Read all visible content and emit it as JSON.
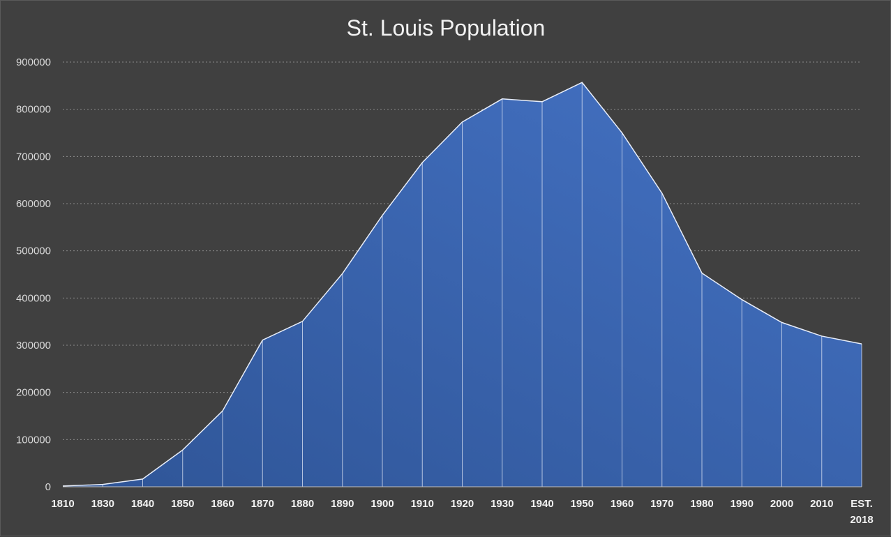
{
  "chart_data": {
    "type": "area",
    "title": "St. Louis Population",
    "xlabel": "",
    "ylabel": "",
    "categories": [
      "1810",
      "1830",
      "1840",
      "1850",
      "1860",
      "1870",
      "1880",
      "1890",
      "1900",
      "1910",
      "1920",
      "1930",
      "1940",
      "1950",
      "1960",
      "1970",
      "1980",
      "1990",
      "2000",
      "2010",
      "EST. 2018"
    ],
    "category_lines": [
      [
        "1810"
      ],
      [
        "1830"
      ],
      [
        "1840"
      ],
      [
        "1850"
      ],
      [
        "1860"
      ],
      [
        "1870"
      ],
      [
        "1880"
      ],
      [
        "1890"
      ],
      [
        "1900"
      ],
      [
        "1910"
      ],
      [
        "1920"
      ],
      [
        "1930"
      ],
      [
        "1940"
      ],
      [
        "1950"
      ],
      [
        "1960"
      ],
      [
        "1970"
      ],
      [
        "1980"
      ],
      [
        "1990"
      ],
      [
        "2000"
      ],
      [
        "2010"
      ],
      [
        "EST.",
        "2018"
      ]
    ],
    "values": [
      1600,
      4977,
      16469,
      77860,
      160773,
      310864,
      350518,
      451770,
      575238,
      687029,
      772897,
      821960,
      816048,
      856796,
      750026,
      622236,
      452801,
      396685,
      348189,
      319294,
      302838
    ],
    "ylim": [
      0,
      900000
    ],
    "yticks": [
      0,
      100000,
      200000,
      300000,
      400000,
      500000,
      600000,
      700000,
      800000,
      900000
    ],
    "ytick_labels": [
      "0",
      "100000",
      "200000",
      "300000",
      "400000",
      "500000",
      "600000",
      "700000",
      "800000",
      "900000"
    ],
    "grid": true,
    "legend": "none",
    "colors": {
      "background": "#404040",
      "fill_dark": "#2f5597",
      "fill_light": "#4472c4",
      "line": "#e8eefa",
      "grid": "#8a8a8a",
      "text": "#f2f2f2",
      "tick_text": "#d9d9d9"
    }
  }
}
